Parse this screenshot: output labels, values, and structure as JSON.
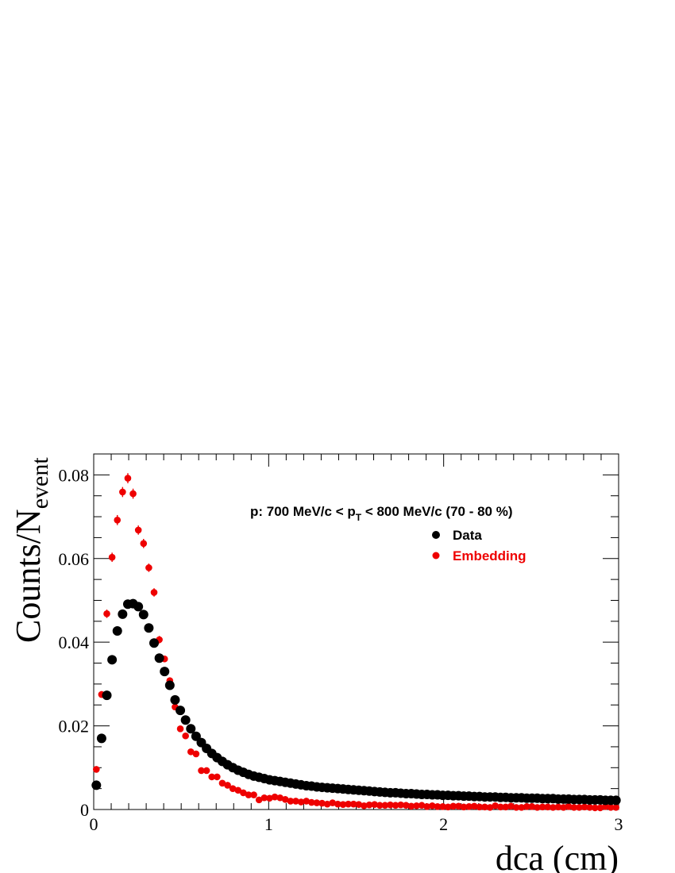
{
  "chart_data": {
    "type": "scatter",
    "title": "",
    "annotation": {
      "prefix": "p: 700 MeV/c < p",
      "subscript": "T",
      "suffix": " < 800 MeV/c (70 - 80 %)"
    },
    "xlabel": "dca (cm)",
    "ylabel": {
      "main": "Counts/N",
      "subscript": "event"
    },
    "xlim": [
      0,
      3
    ],
    "ylim": [
      0,
      0.085
    ],
    "x_ticks": [
      0,
      1,
      2,
      3
    ],
    "x_tick_labels": [
      "0",
      "1",
      "2",
      "3"
    ],
    "y_ticks": [
      0,
      0.02,
      0.04,
      0.06,
      0.08
    ],
    "y_tick_labels": [
      "0",
      "0.02",
      "0.04",
      "0.06",
      "0.08"
    ],
    "grid": false,
    "legend": {
      "placement": "top-right",
      "entries": [
        "Data",
        "Embedding"
      ]
    },
    "series": [
      {
        "name": "Data",
        "color": "#000000",
        "marker": "large-circle",
        "x": [
          0.015,
          0.045,
          0.075,
          0.105,
          0.135,
          0.165,
          0.195,
          0.225,
          0.255,
          0.285,
          0.315,
          0.345,
          0.375,
          0.405,
          0.435,
          0.465,
          0.495,
          0.525,
          0.555,
          0.585,
          0.615,
          0.645,
          0.675,
          0.705,
          0.735,
          0.765,
          0.795,
          0.825,
          0.855,
          0.885,
          0.915,
          0.945,
          0.975,
          1.005,
          1.035,
          1.065,
          1.095,
          1.125,
          1.155,
          1.185,
          1.215,
          1.245,
          1.275,
          1.305,
          1.335,
          1.365,
          1.395,
          1.425,
          1.455,
          1.485,
          1.515,
          1.545,
          1.575,
          1.605,
          1.635,
          1.665,
          1.695,
          1.725,
          1.755,
          1.785,
          1.815,
          1.845,
          1.875,
          1.905,
          1.935,
          1.965,
          1.995,
          2.025,
          2.055,
          2.085,
          2.115,
          2.145,
          2.175,
          2.205,
          2.235,
          2.265,
          2.295,
          2.325,
          2.355,
          2.385,
          2.415,
          2.445,
          2.475,
          2.505,
          2.535,
          2.565,
          2.595,
          2.625,
          2.655,
          2.685,
          2.715,
          2.745,
          2.775,
          2.805,
          2.835,
          2.865,
          2.895,
          2.925,
          2.955,
          2.985
        ],
        "y": [
          0.0058,
          0.017,
          0.0273,
          0.0358,
          0.0427,
          0.0467,
          0.0491,
          0.0492,
          0.0485,
          0.0466,
          0.0434,
          0.0398,
          0.0362,
          0.033,
          0.0297,
          0.0262,
          0.0237,
          0.0214,
          0.0193,
          0.0175,
          0.016,
          0.0146,
          0.0134,
          0.0124,
          0.0115,
          0.0107,
          0.01,
          0.0094,
          0.0089,
          0.0084,
          0.008,
          0.0077,
          0.0074,
          0.0071,
          0.0069,
          0.0067,
          0.0065,
          0.0063,
          0.0061,
          0.0059,
          0.0057,
          0.0056,
          0.0054,
          0.0053,
          0.0052,
          0.0051,
          0.005,
          0.0049,
          0.0048,
          0.0047,
          0.0046,
          0.0045,
          0.0044,
          0.0043,
          0.0042,
          0.0041,
          0.004,
          0.004,
          0.0039,
          0.0038,
          0.0038,
          0.0037,
          0.0036,
          0.0036,
          0.0035,
          0.0035,
          0.0034,
          0.0034,
          0.0033,
          0.0033,
          0.0032,
          0.0032,
          0.0031,
          0.0031,
          0.003,
          0.003,
          0.003,
          0.0029,
          0.0029,
          0.0028,
          0.0028,
          0.0028,
          0.0027,
          0.0027,
          0.0027,
          0.0026,
          0.0026,
          0.0026,
          0.0025,
          0.0025,
          0.0025,
          0.0024,
          0.0024,
          0.0024,
          0.0023,
          0.0023,
          0.0023,
          0.0022,
          0.0022,
          0.0022
        ]
      },
      {
        "name": "Embedding",
        "color": "#ee0000",
        "marker": "small-circle-with-error-bars",
        "x": [
          0.015,
          0.045,
          0.075,
          0.105,
          0.135,
          0.165,
          0.195,
          0.225,
          0.255,
          0.285,
          0.315,
          0.345,
          0.375,
          0.405,
          0.435,
          0.465,
          0.495,
          0.525,
          0.555,
          0.585,
          0.615,
          0.645,
          0.675,
          0.705,
          0.735,
          0.765,
          0.795,
          0.825,
          0.855,
          0.885,
          0.915,
          0.945,
          0.975,
          1.005,
          1.035,
          1.065,
          1.095,
          1.125,
          1.155,
          1.185,
          1.215,
          1.245,
          1.275,
          1.305,
          1.335,
          1.365,
          1.395,
          1.425,
          1.455,
          1.485,
          1.515,
          1.545,
          1.575,
          1.605,
          1.635,
          1.665,
          1.695,
          1.725,
          1.755,
          1.785,
          1.815,
          1.845,
          1.875,
          1.905,
          1.935,
          1.965,
          1.995,
          2.025,
          2.055,
          2.085,
          2.115,
          2.145,
          2.175,
          2.205,
          2.235,
          2.265,
          2.295,
          2.325,
          2.355,
          2.385,
          2.415,
          2.445,
          2.475,
          2.505,
          2.535,
          2.565,
          2.595,
          2.625,
          2.655,
          2.685,
          2.715,
          2.745,
          2.775,
          2.805,
          2.835,
          2.865,
          2.895,
          2.925,
          2.955,
          2.985
        ],
        "y": [
          0.0096,
          0.0275,
          0.0468,
          0.0603,
          0.0692,
          0.0759,
          0.0792,
          0.0755,
          0.0668,
          0.0636,
          0.0578,
          0.0519,
          0.0406,
          0.036,
          0.0308,
          0.0245,
          0.0193,
          0.0176,
          0.0138,
          0.0133,
          0.0093,
          0.0093,
          0.0078,
          0.0078,
          0.0063,
          0.0058,
          0.005,
          0.0046,
          0.004,
          0.0035,
          0.0035,
          0.0023,
          0.0028,
          0.0027,
          0.003,
          0.0028,
          0.0024,
          0.002,
          0.002,
          0.0018,
          0.002,
          0.0017,
          0.0016,
          0.0015,
          0.0013,
          0.0016,
          0.0013,
          0.0012,
          0.0013,
          0.0013,
          0.0012,
          0.0009,
          0.0011,
          0.0012,
          0.001,
          0.001,
          0.0011,
          0.001,
          0.0011,
          0.001,
          0.0008,
          0.0009,
          0.001,
          0.0007,
          0.0009,
          0.0007,
          0.0007,
          0.0006,
          0.0008,
          0.0008,
          0.0006,
          0.0007,
          0.0008,
          0.0006,
          0.0006,
          0.0005,
          0.0009,
          0.0006,
          0.0006,
          0.0008,
          0.0005,
          0.0005,
          0.0007,
          0.0007,
          0.0005,
          0.0006,
          0.0006,
          0.0005,
          0.0006,
          0.0005,
          0.0007,
          0.0005,
          0.0005,
          0.0006,
          0.0005,
          0.0004,
          0.0004,
          0.0007,
          0.0005,
          0.0005
        ],
        "y_err": [
          0.0004,
          0.0008,
          0.001,
          0.0011,
          0.0012,
          0.0012,
          0.0012,
          0.0012,
          0.0011,
          0.0011,
          0.001,
          0.001,
          0.0009,
          0.0008,
          0.0008,
          0.0007,
          0.0006,
          0.0006,
          0.0005,
          0.0005,
          0.0004,
          0.0004,
          0.0004,
          0.0004,
          0.0003,
          0.0003,
          0.0003,
          0.0003,
          0.0003,
          0.0002,
          0.0002,
          0.0002,
          0.0002,
          0.0002,
          0.0002,
          0.0002,
          0.0002,
          0.0002,
          0.0002,
          0.0002,
          0.0002,
          0.0002,
          0.0002,
          0.0002,
          0.0001,
          0.0001,
          0.0001,
          0.0001,
          0.0001,
          0.0001,
          0.0001,
          0.0001,
          0.0001,
          0.0001,
          0.0001,
          0.0001,
          0.0001,
          0.0001,
          0.0001,
          0.0001,
          0.0001,
          0.0001,
          0.0001,
          0.0001,
          0.0001,
          0.0001,
          0.0001,
          0.0001,
          0.0001,
          0.0001,
          0.0001,
          0.0001,
          0.0001,
          0.0001,
          0.0001,
          0.0001,
          0.0001,
          0.0001,
          0.0001,
          0.0001,
          0.0001,
          0.0001,
          0.0001,
          0.0001,
          0.0001,
          0.0001,
          0.0001,
          0.0001,
          0.0001,
          0.0001,
          0.0001,
          0.0001,
          0.0001,
          0.0001,
          0.0001,
          0.0001,
          0.0001,
          0.0001,
          0.0001,
          0.0001
        ]
      }
    ]
  }
}
